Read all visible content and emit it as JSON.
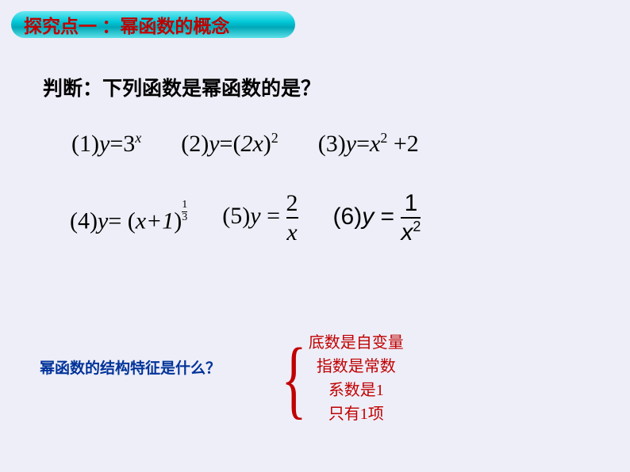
{
  "header": {
    "title": "探究点一 ：幂函数的概念"
  },
  "question": "判断：下列函数是幂函数的是？",
  "formulas": {
    "f1_label": "(1)",
    "f1_body_y": "y",
    "f1_body_eq": "=",
    "f1_body_base": "3",
    "f1_sup": "x",
    "f2_label": "(2)",
    "f2_body_y": "y",
    "f2_body_eq": "=",
    "f2_body_open": "(",
    "f2_body_2x": "2x",
    "f2_body_close": ")",
    "f2_sup": "2",
    "f3_label": "(3)",
    "f3_body_y": "y",
    "f3_body_eq": "=",
    "f3_body_x": "x",
    "f3_sup": "2",
    "f3_body_plus": " +2",
    "f4_label": "(4)",
    "f4_body_y": "y",
    "f4_body_eq": "= ",
    "f4_body_open": "(",
    "f4_body_xp1": "x+1",
    "f4_body_close": ")",
    "f4_sup_num": "1",
    "f4_sup_den": "3",
    "f5_label": "(5)",
    "f5_body_y": "y",
    "f5_body_eq": " = ",
    "f5_num": "2",
    "f5_den": "x",
    "f6_label": "(6)",
    "f6_body_y": "y",
    "f6_body_eq": " = ",
    "f6_num": "1",
    "f6_den_x": "x",
    "f6_den_sup": "2"
  },
  "bottom_question": "幂函数的结构特征是什么？",
  "features": {
    "line1": "底数是自变量",
    "line2": "指数是常数",
    "line3": "系数是1",
    "line4": "只有1项"
  },
  "colors": {
    "background": "#eeeef8",
    "header_text": "#c00000",
    "bottom_question": "#003399",
    "feature_text": "#c00000"
  }
}
